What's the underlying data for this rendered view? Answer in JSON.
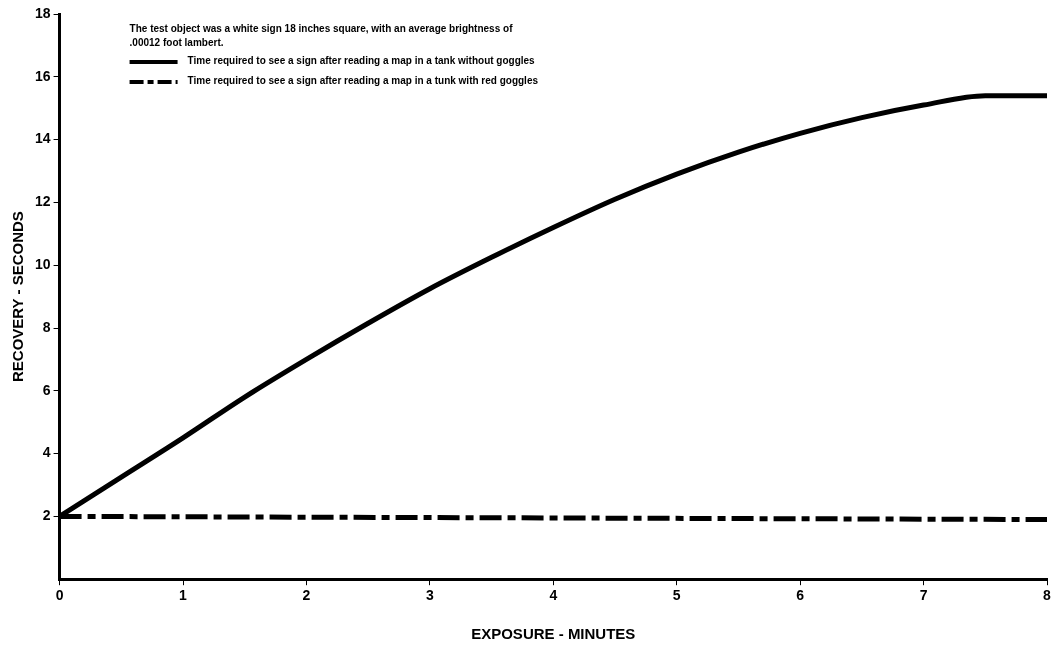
{
  "chart_data": {
    "type": "line",
    "xlabel": "EXPOSURE - MINUTES",
    "ylabel": "RECOVERY - SECONDS",
    "annotations": [
      "The test object was a white sign 18 inches square, with an average brightness of\n.00012 foot lambert."
    ],
    "x": [
      0,
      0.5,
      1,
      1.5,
      2,
      2.5,
      3,
      3.5,
      4,
      4.5,
      5,
      5.5,
      6,
      6.5,
      7,
      7.5,
      8
    ],
    "series": [
      {
        "name": "Time required to see a sign after reading a map in a tank without goggles",
        "color": "#000000",
        "line_style": "solid",
        "values": [
          2,
          3.25,
          4.5,
          5.8,
          7.0,
          8.15,
          9.25,
          10.25,
          11.2,
          12.1,
          12.9,
          13.6,
          14.2,
          14.7,
          15.1,
          15.4,
          15.4
        ]
      },
      {
        "name": "Time required to see a sign after reading a map in a tunk with red goggles",
        "color": "#000000",
        "line_style": "dashed",
        "x": [
          0,
          8
        ],
        "values": [
          2,
          1.9
        ]
      }
    ],
    "xlim": [
      0,
      8
    ],
    "xticks": [
      0,
      1,
      2,
      3,
      4,
      5,
      6,
      7,
      8
    ],
    "ylim": [
      0,
      18
    ],
    "yticks": [
      2,
      4,
      6,
      8,
      10,
      12,
      14,
      16,
      18
    ],
    "grid": false,
    "legend": "top left",
    "marker": "none"
  }
}
